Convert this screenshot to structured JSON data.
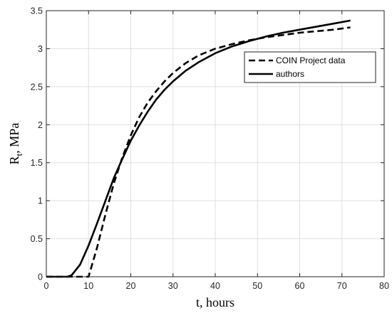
{
  "chart_data": {
    "type": "line",
    "xlabel": "t, hours",
    "ylabel": {
      "main": "R",
      "sub": "t",
      "rest": ", MPa"
    },
    "xlim": [
      0,
      80
    ],
    "ylim": [
      0,
      3.5
    ],
    "xticks": [
      0,
      10,
      20,
      30,
      40,
      50,
      60,
      70,
      80
    ],
    "yticks": [
      0,
      0.5,
      1,
      1.5,
      2,
      2.5,
      3,
      3.5
    ],
    "xtick_labels": [
      "0",
      "10",
      "20",
      "30",
      "40",
      "50",
      "60",
      "70",
      "80"
    ],
    "ytick_labels": [
      "0",
      "0.5",
      "1",
      "1.5",
      "2",
      "2.5",
      "3",
      "3.5"
    ],
    "grid": true,
    "legend_position": "top-right",
    "series": [
      {
        "name": "COIN Project data",
        "style": "dashed",
        "color": "#000000",
        "x": [
          0,
          10,
          12,
          14,
          16,
          18,
          20,
          22,
          24,
          26,
          28,
          30,
          33,
          36,
          40,
          44,
          48,
          52,
          56,
          60,
          64,
          68,
          72
        ],
        "y": [
          0,
          0,
          0.38,
          0.82,
          1.23,
          1.57,
          1.86,
          2.1,
          2.29,
          2.44,
          2.57,
          2.68,
          2.81,
          2.91,
          3.0,
          3.06,
          3.11,
          3.15,
          3.18,
          3.21,
          3.23,
          3.25,
          3.28
        ]
      },
      {
        "name": "authors",
        "style": "solid",
        "color": "#000000",
        "x": [
          0,
          5,
          6,
          8,
          10,
          12,
          14,
          16,
          18,
          20,
          22,
          24,
          26,
          28,
          30,
          33,
          36,
          40,
          44,
          48,
          52,
          56,
          60,
          64,
          68,
          72
        ],
        "y": [
          0,
          0,
          0.02,
          0.16,
          0.41,
          0.7,
          1.0,
          1.3,
          1.55,
          1.79,
          1.99,
          2.17,
          2.33,
          2.46,
          2.57,
          2.71,
          2.82,
          2.94,
          3.03,
          3.1,
          3.16,
          3.21,
          3.25,
          3.29,
          3.33,
          3.37
        ]
      }
    ]
  }
}
